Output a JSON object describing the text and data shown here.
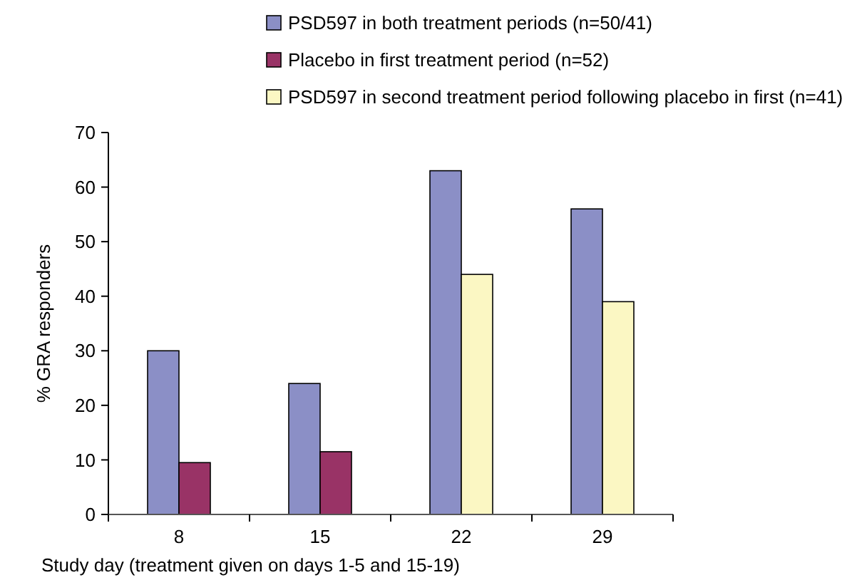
{
  "chart_data": {
    "type": "bar",
    "xlabel": "Study day (treatment given on days 1-5 and 15-19)",
    "ylabel": "% GRA responders",
    "categories": [
      "8",
      "15",
      "22",
      "29"
    ],
    "series": [
      {
        "name": "PSD597 in both treatment periods (n=50/41)",
        "color": "#8b8fc6",
        "values": [
          30,
          24,
          63,
          56
        ]
      },
      {
        "name": "Placebo in first treatment period (n=52)",
        "color": "#993366",
        "values": [
          9.5,
          11.5,
          null,
          null
        ]
      },
      {
        "name": "PSD597 in second treatment period following placebo in first (n=41)",
        "color": "#fbf7c3",
        "values": [
          null,
          null,
          44,
          39
        ]
      }
    ],
    "ylim": [
      0,
      70
    ],
    "yticks": [
      0,
      10,
      20,
      30,
      40,
      50,
      60,
      70
    ],
    "grid": false,
    "legend": "top"
  }
}
